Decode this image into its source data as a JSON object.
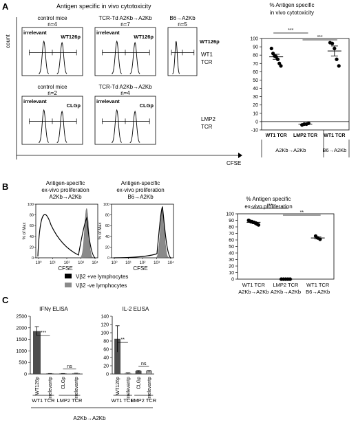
{
  "panel_A": {
    "letter": "A",
    "title": "Antigen specific in vivo cytotoxicity",
    "y_label": "count",
    "x_label": "CFSE",
    "histograms": {
      "hist_wt1_control": {
        "header": "control mice",
        "n": "n=4",
        "left": "irrelevant",
        "right": "WT126p"
      },
      "hist_wt1_tcrtd": {
        "header": "TCR-Td A2Kb→A2Kb",
        "n": "n=7",
        "left": "irrelevant",
        "right": "WT126p"
      },
      "hist_wt1_b6": {
        "header": "B6→A2Kb",
        "n": "n=5",
        "left": "irrelevant",
        "right": "WT126p"
      },
      "hist_lmp2_control": {
        "header": "control mice",
        "n": "n=2",
        "left": "irrelevant",
        "right": "CLGp"
      },
      "hist_lmp2_tcrtd": {
        "header": "TCR-Td A2Kb→A2Kb",
        "n": "n=4",
        "left": "irrelevant",
        "right": "CLGp"
      }
    },
    "row_labels": {
      "wt1": [
        "WT1",
        "TCR"
      ],
      "lmp2": [
        "LMP2",
        "TCR"
      ]
    }
  },
  "panel_B": {
    "letter": "B",
    "hist_titles": {
      "left": [
        "Antigen-specific",
        "ex-vivo proliferation",
        "A2Kb→A2Kb"
      ],
      "right": [
        "Antigen-specific",
        "ex-vivo proliferation",
        "B6→A2Kb"
      ]
    },
    "hist_y_label": "% of Max",
    "hist_x_label": "CFSE",
    "hist_x_ticks": [
      "10⁰",
      "10¹",
      "10²",
      "10³",
      "10⁴"
    ],
    "hist_y_ticks": [
      "0",
      "20",
      "40",
      "60",
      "80",
      "100"
    ],
    "legend": [
      {
        "label": "Vβ2 +ve lymphocytes",
        "color": "#000000"
      },
      {
        "label": "Vβ2 -ve lymphocytes",
        "color": "#8a8a8a"
      }
    ]
  },
  "panel_C": {
    "letter": "C",
    "x_footer": "A2Kb→A2Kb",
    "charts": {
      "ifn": {
        "group_labels": [
          "WT1 TCR",
          "LMP2 TCR"
        ]
      },
      "il2": {
        "group_labels": [
          "WT1 TCR",
          "LMP2 TCR"
        ]
      }
    }
  },
  "colors": {
    "bar_dark": "#4d4d4d",
    "bar_light": "#a6a6a6",
    "line": "#000000"
  },
  "chart_data": [
    {
      "id": "A_cytotoxicity",
      "type": "scatter",
      "title": "% Antigen specific in vivo cytotoxicity",
      "categories": [
        "WT1 TCR",
        "LMP2 TCR",
        "WT1 TCR"
      ],
      "group_labels": [
        {
          "label": "A2Kb→A2Kb",
          "categories": [
            0,
            1
          ]
        },
        {
          "label": "B6→A2Kb",
          "categories": [
            2
          ]
        }
      ],
      "ylim": [
        -10,
        100
      ],
      "yticks": [
        -10,
        0,
        10,
        20,
        30,
        40,
        50,
        60,
        70,
        80,
        90,
        100
      ],
      "series": [
        {
          "points": [
            88,
            82,
            79,
            78,
            75,
            70,
            67
          ],
          "mean": 78,
          "sem": 3
        },
        {
          "points": [
            -4,
            -3,
            -3,
            -2
          ],
          "mean": -3,
          "sem": 0.7
        },
        {
          "points": [
            95,
            94,
            88,
            75,
            67
          ],
          "mean": 85,
          "sem": 6
        }
      ],
      "significance": [
        {
          "from": 0,
          "to": 1,
          "label": "***"
        },
        {
          "from": 1,
          "to": 2,
          "label": "***"
        }
      ]
    },
    {
      "id": "B_proliferation",
      "type": "scatter",
      "title": "% Antigen specific ex-vivo proliferation",
      "categories": [
        [
          "WT1 TCR",
          "A2Kb→A2Kb"
        ],
        [
          "LMP2 TCR",
          "A2Kb→A2Kb"
        ],
        [
          "WT1 TCR",
          "B6→A2Kb"
        ]
      ],
      "ylim": [
        0,
        100
      ],
      "yticks": [
        0,
        10,
        20,
        30,
        40,
        50,
        60,
        70,
        80,
        90,
        100
      ],
      "series": [
        {
          "points": [
            90,
            89,
            88,
            88,
            87,
            87,
            86,
            85,
            84,
            83
          ],
          "mean": 87,
          "sem": 1
        },
        {
          "points": [
            0,
            0,
            0,
            0,
            0
          ],
          "mean": 0,
          "sem": 0
        },
        {
          "points": [
            66,
            63,
            61
          ],
          "mean": 63,
          "sem": 1.5
        }
      ],
      "significance": [
        {
          "from": 0,
          "to": 1,
          "label": "***"
        },
        {
          "from": 1,
          "to": 2,
          "label": "**"
        }
      ]
    },
    {
      "id": "C_ifng",
      "type": "bar",
      "title": "IFNγ ELISA",
      "categories": [
        "WT126p",
        "Irrelevantp",
        "CLGp",
        "Irrelevantp"
      ],
      "values": [
        1850,
        15,
        15,
        25
      ],
      "errors": [
        200,
        5,
        5,
        10
      ],
      "bar_colors": [
        "dark",
        "light",
        "dark",
        "light"
      ],
      "ylim": [
        0,
        2500
      ],
      "yticks": [
        0,
        500,
        1000,
        1500,
        2000,
        2500
      ],
      "significance": [
        {
          "from": 0,
          "to": 1,
          "label": "***"
        },
        {
          "from": 2,
          "to": 3,
          "label": "ns"
        }
      ]
    },
    {
      "id": "C_il2",
      "type": "bar",
      "title": "IL-2 ELISA",
      "categories": [
        "WT126p",
        "Irrelevantp",
        "CLGp",
        "Irrelevantp"
      ],
      "values": [
        85,
        2,
        7,
        7
      ],
      "errors": [
        32,
        1,
        1.5,
        1.5
      ],
      "bar_colors": [
        "dark",
        "light",
        "dark",
        "light"
      ],
      "ylim": [
        0,
        140
      ],
      "yticks": [
        0,
        20,
        40,
        60,
        80,
        100,
        120,
        140
      ],
      "significance": [
        {
          "from": 0,
          "to": 1,
          "label": "**"
        },
        {
          "from": 2,
          "to": 3,
          "label": "ns"
        }
      ]
    }
  ]
}
